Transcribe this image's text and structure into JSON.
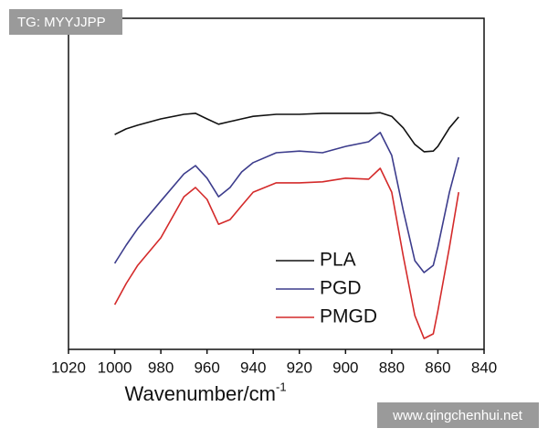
{
  "chart_data": {
    "type": "line",
    "xlabel": "Wavenumber/cm",
    "xlabel_sup": "-1",
    "x": [
      1000,
      995,
      990,
      980,
      970,
      965,
      960,
      955,
      950,
      945,
      940,
      930,
      920,
      910,
      900,
      890,
      885,
      880,
      875,
      870,
      866,
      862,
      860,
      855,
      851
    ],
    "series": [
      {
        "name": "PLA",
        "color": "#111111",
        "values": [
          64.9,
          66.6,
          67.7,
          69.6,
          71.0,
          71.3,
          69.6,
          68.0,
          68.8,
          69.6,
          70.4,
          71.0,
          71.0,
          71.3,
          71.3,
          71.3,
          71.5,
          70.4,
          66.9,
          61.9,
          59.7,
          59.9,
          61.3,
          66.9,
          70.2
        ]
      },
      {
        "name": "PGD",
        "color": "#3c3c8c",
        "values": [
          26.0,
          31.5,
          36.5,
          44.8,
          53.0,
          55.5,
          51.7,
          46.1,
          48.9,
          53.6,
          56.4,
          59.4,
          59.9,
          59.4,
          61.3,
          62.7,
          65.5,
          58.6,
          42.0,
          26.8,
          23.2,
          25.4,
          30.9,
          47.5,
          58.0
        ]
      },
      {
        "name": "PMGD",
        "color": "#d42a2a",
        "values": [
          13.5,
          19.9,
          25.4,
          33.7,
          46.1,
          48.9,
          45.3,
          37.8,
          39.2,
          43.4,
          47.5,
          50.3,
          50.3,
          50.6,
          51.7,
          51.4,
          54.7,
          47.5,
          28.2,
          10.2,
          3.3,
          4.7,
          11.6,
          30.9,
          47.5
        ]
      }
    ],
    "xlim": [
      1020,
      840
    ],
    "xticks": [
      1020,
      1000,
      980,
      960,
      940,
      920,
      900,
      880,
      860,
      840
    ],
    "ylim": [
      0,
      100
    ]
  },
  "watermarks": [
    "TG: MYYJJPP",
    "www.qingchenhui.net"
  ]
}
